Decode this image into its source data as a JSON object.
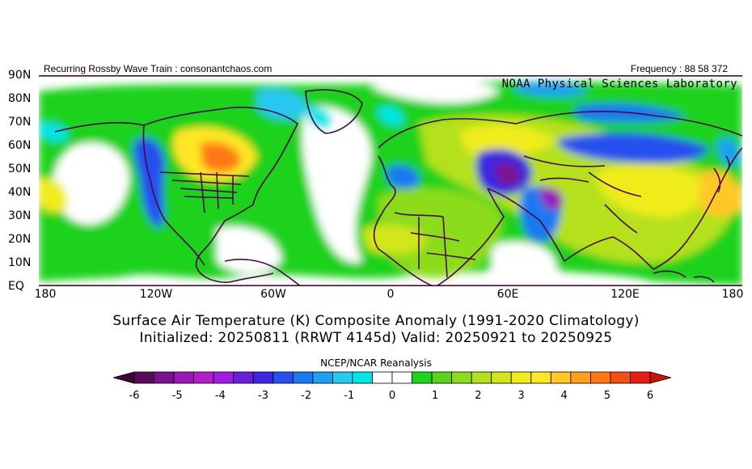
{
  "header": {
    "left_text": "Recurring Rossby Wave Train : consonantchaos.com",
    "right_text": "Frequency : 88 58 372",
    "provider": "NOAA Physical Sciences Laboratory"
  },
  "map": {
    "projection": "equirectangular",
    "lon_range": [
      -180,
      180
    ],
    "lat_range": [
      0,
      90
    ],
    "lat_ticks": [
      "90N",
      "80N",
      "70N",
      "60N",
      "50N",
      "40N",
      "30N",
      "20N",
      "10N",
      "EQ"
    ],
    "lon_ticks": [
      "180",
      "120W",
      "60W",
      "0",
      "60E",
      "120E",
      "180"
    ]
  },
  "title": {
    "line1": "Surface Air Temperature (K) Composite Anomaly (1991-2020 Climatology)",
    "line2": "Initialized: 20250811 (RRWT 4145d) Valid: 20250921 to 20250925"
  },
  "colorbar": {
    "source": "NCEP/NCAR Reanalysis",
    "labels": [
      "-6",
      "-5",
      "-4",
      "-3",
      "-2",
      "-1",
      "0",
      "1",
      "2",
      "3",
      "4",
      "5",
      "6"
    ],
    "colors": [
      "#5a0a5a",
      "#7a1290",
      "#9818b8",
      "#b41ec8",
      "#a01ee0",
      "#6a1ed8",
      "#3c28e0",
      "#2850f0",
      "#1e78f0",
      "#1ea0f0",
      "#28c8f0",
      "#00e6e6",
      "#ffffff",
      "#ffffff",
      "#1ed21e",
      "#5ad21e",
      "#8cdc1e",
      "#b4e11e",
      "#d2e61e",
      "#f0ec1e",
      "#ffe628",
      "#ffc828",
      "#ffa01e",
      "#ff7814",
      "#f05014",
      "#e61e14"
    ]
  }
}
